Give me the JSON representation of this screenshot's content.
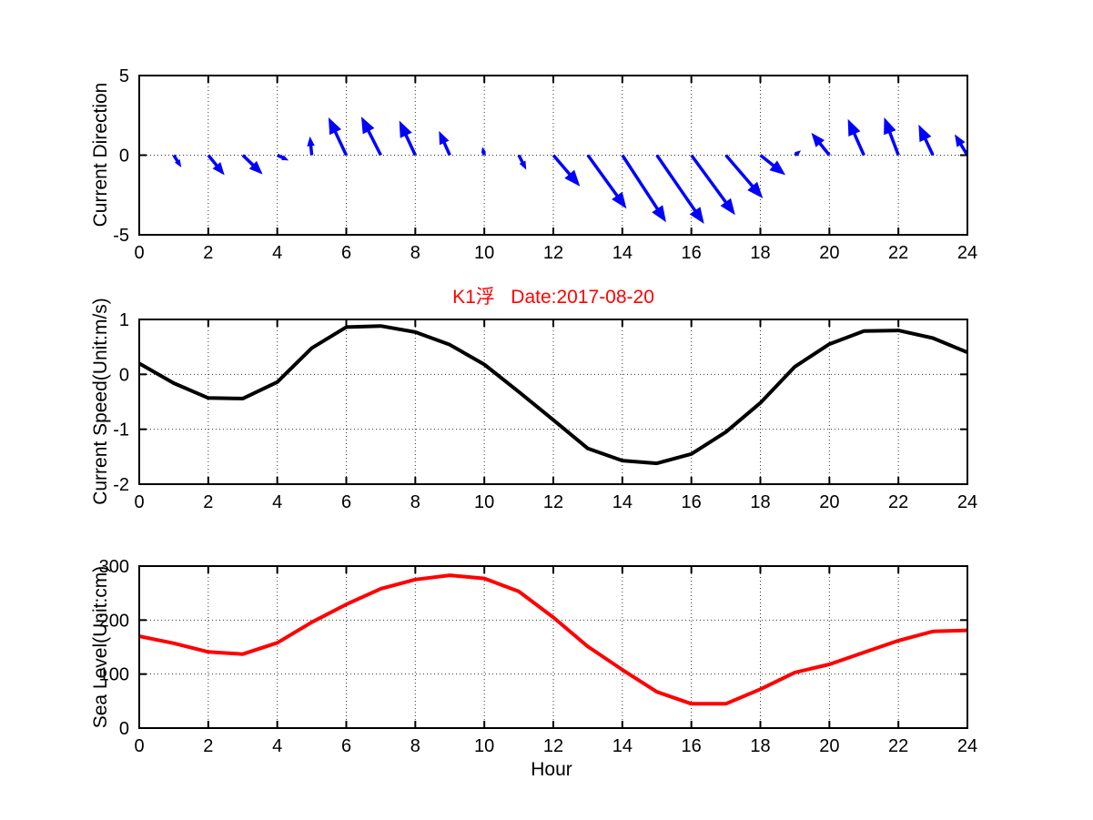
{
  "figure": {
    "background": "#ffffff"
  },
  "title": {
    "text": "K1浮   Date:2017-08-20",
    "color": "#ff0000"
  },
  "xlabel": "Hour",
  "xticks": {
    "values": [
      0,
      2,
      4,
      6,
      8,
      10,
      12,
      14,
      16,
      18,
      20,
      22,
      24
    ],
    "labels": [
      "0",
      "2",
      "4",
      "6",
      "8",
      "10",
      "12",
      "14",
      "16",
      "18",
      "20",
      "22",
      "24"
    ]
  },
  "chart_data": [
    {
      "type": "quiver",
      "ylabel": "Current Direction",
      "color": "#0000ff",
      "xlim": [
        0,
        24
      ],
      "ylim": [
        -5,
        5
      ],
      "yticks": [
        5,
        0,
        -5
      ],
      "grid": true,
      "x": [
        0,
        1,
        2,
        3,
        4,
        5,
        6,
        7,
        8,
        9,
        10,
        11,
        12,
        13,
        14,
        15,
        16,
        17,
        18,
        19,
        20,
        21,
        22,
        23,
        24
      ],
      "u": [
        0,
        0.2,
        0.45,
        0.55,
        0.3,
        -0.05,
        -0.5,
        -0.55,
        -0.45,
        -0.3,
        -0.05,
        0.2,
        0.75,
        1.1,
        1.25,
        1.35,
        1.25,
        1.05,
        0.7,
        0.15,
        -0.5,
        -0.45,
        -0.4,
        -0.4,
        -0.35
      ],
      "v": [
        0,
        -0.7,
        -1.2,
        -1.15,
        -0.3,
        1.1,
        2.3,
        2.35,
        2.1,
        1.45,
        0.45,
        -0.85,
        -1.9,
        -3.3,
        -4.15,
        -4.25,
        -3.7,
        -2.65,
        -1.2,
        0.25,
        1.35,
        2.2,
        2.3,
        1.85,
        1.25
      ]
    },
    {
      "type": "line",
      "ylabel": "Current Speed(Unit:m/s)",
      "color": "#000000",
      "line_width": 4,
      "xlim": [
        0,
        24
      ],
      "ylim": [
        -2,
        1
      ],
      "yticks": [
        1,
        0,
        -1,
        -2
      ],
      "grid": true,
      "x": [
        0,
        1,
        2,
        3,
        4,
        5,
        6,
        7,
        8,
        9,
        10,
        11,
        12,
        13,
        14,
        15,
        16,
        17,
        18,
        19,
        20,
        21,
        22,
        23,
        24
      ],
      "y": [
        0.2,
        -0.16,
        -0.43,
        -0.44,
        -0.14,
        0.48,
        0.86,
        0.88,
        0.77,
        0.54,
        0.18,
        -0.32,
        -0.83,
        -1.35,
        -1.57,
        -1.62,
        -1.45,
        -1.05,
        -0.52,
        0.14,
        0.55,
        0.79,
        0.8,
        0.66,
        0.4
      ]
    },
    {
      "type": "line",
      "ylabel": "Sea Level(Unit:cm)",
      "xlabel": "Hour",
      "color": "#ff0000",
      "line_width": 4,
      "xlim": [
        0,
        24
      ],
      "ylim": [
        0,
        300
      ],
      "yticks": [
        300,
        200,
        100,
        0
      ],
      "grid": true,
      "x": [
        0,
        1,
        2,
        3,
        4,
        5,
        6,
        7,
        8,
        9,
        10,
        11,
        12,
        13,
        14,
        15,
        16,
        17,
        18,
        19,
        20,
        21,
        22,
        23,
        24
      ],
      "y": [
        170,
        157,
        141,
        137,
        158,
        196,
        229,
        258,
        275,
        283,
        277,
        253,
        205,
        151,
        108,
        67,
        45,
        45,
        72,
        103,
        118,
        140,
        162,
        179,
        181
      ]
    }
  ]
}
